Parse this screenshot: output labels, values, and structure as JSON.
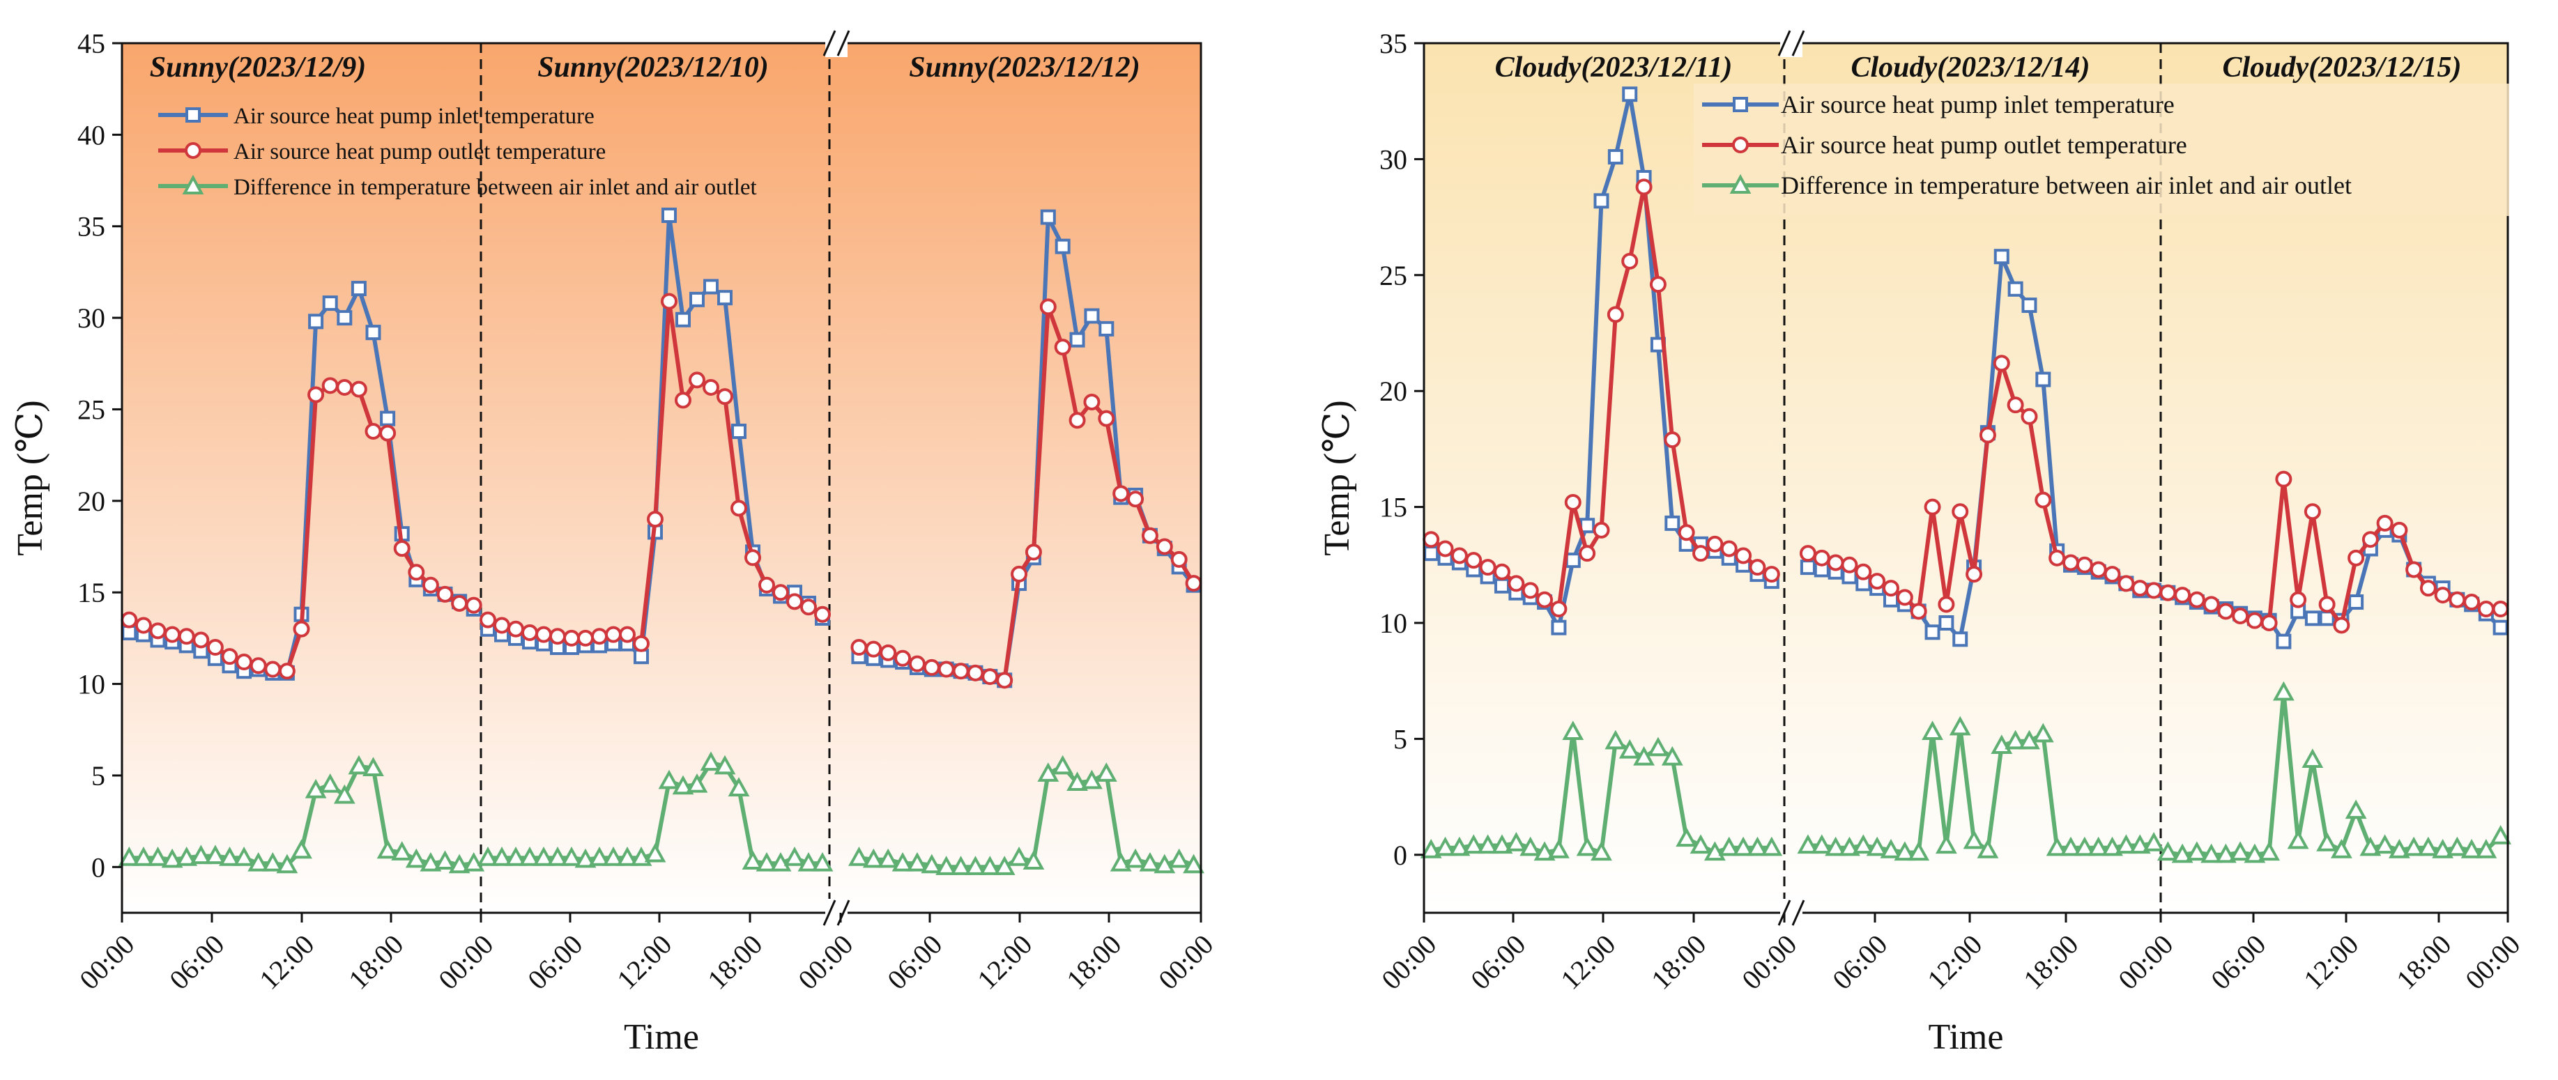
{
  "chart_data": [
    {
      "type": "line",
      "ylabel": "Temp (℃)",
      "xlabel": "Time",
      "ylim": [
        -2.5,
        45
      ],
      "yticks": [
        0,
        5,
        10,
        15,
        20,
        25,
        30,
        35,
        40,
        45
      ],
      "xticks": [
        "00:00",
        "06:00",
        "12:00",
        "18:00",
        "00:00",
        "06:00",
        "12:00",
        "18:00",
        "00:00",
        "06:00",
        "12:00",
        "18:00",
        "00:00"
      ],
      "panel_titles": [
        "Sunny(2023/12/9)",
        "Sunny(2023/12/10)",
        "Sunny(2023/12/12)"
      ],
      "legend": [
        "Air source heat pump inlet temperature",
        "Air source heat pump outlet temperature",
        "Difference in temperature between air inlet and air outlet"
      ],
      "legend_position": "top-left",
      "background": "gradient-orange",
      "colors": {
        "inlet": "#4a76b8",
        "outlet": "#d0373c",
        "diff": "#5fae72",
        "bg_top": "#f9a66c",
        "bg_bottom": "#ffffff"
      },
      "series": [
        {
          "name": "Air source heat pump inlet temperature",
          "values": [
            [
              12.8,
              12.7,
              12.4,
              12.3,
              12.1,
              11.8,
              11.4,
              11.0,
              10.7,
              10.8,
              10.6,
              10.6,
              13.8,
              29.8,
              30.8,
              30.0,
              31.6,
              29.2,
              24.5,
              18.2,
              15.7,
              15.2,
              14.9,
              14.5,
              14.1
            ],
            [
              13.0,
              12.7,
              12.5,
              12.3,
              12.2,
              12.0,
              12.0,
              12.1,
              12.1,
              12.2,
              12.2,
              11.5,
              18.3,
              35.6,
              29.9,
              31.0,
              31.7,
              31.1,
              23.8,
              17.2,
              15.2,
              14.8,
              15.0,
              14.4,
              13.6
            ],
            [
              11.5,
              11.4,
              11.3,
              11.2,
              10.9,
              10.8,
              10.8,
              10.7,
              10.6,
              10.4,
              10.2,
              15.5,
              16.9,
              35.5,
              33.9,
              28.8,
              30.1,
              29.4,
              20.2,
              20.3,
              18.1,
              17.4,
              16.4,
              15.4
            ]
          ]
        },
        {
          "name": "Air source heat pump outlet temperature",
          "values": [
            [
              13.5,
              13.2,
              12.9,
              12.7,
              12.6,
              12.4,
              12.0,
              11.5,
              11.2,
              11.0,
              10.8,
              10.7,
              13.0,
              25.8,
              26.3,
              26.2,
              26.1,
              23.8,
              23.7,
              17.4,
              16.1,
              15.4,
              14.9,
              14.4,
              14.3
            ],
            [
              13.5,
              13.2,
              13.0,
              12.8,
              12.7,
              12.6,
              12.5,
              12.5,
              12.6,
              12.7,
              12.7,
              12.2,
              19.0,
              30.9,
              25.5,
              26.6,
              26.2,
              25.7,
              19.6,
              16.9,
              15.4,
              15.0,
              14.5,
              14.2,
              13.8
            ],
            [
              12.0,
              11.9,
              11.7,
              11.4,
              11.1,
              10.9,
              10.8,
              10.7,
              10.6,
              10.4,
              10.2,
              16.0,
              17.2,
              30.6,
              28.4,
              24.4,
              25.4,
              24.5,
              20.4,
              20.1,
              18.1,
              17.5,
              16.8,
              15.5
            ]
          ]
        },
        {
          "name": "Difference in temperature between air inlet and air outlet",
          "values": [
            [
              0.5,
              0.5,
              0.5,
              0.4,
              0.5,
              0.6,
              0.6,
              0.5,
              0.5,
              0.2,
              0.2,
              0.1,
              0.9,
              4.2,
              4.5,
              3.9,
              5.5,
              5.4,
              0.9,
              0.8,
              0.4,
              0.2,
              0.3,
              0.1,
              0.2
            ],
            [
              0.5,
              0.5,
              0.5,
              0.5,
              0.5,
              0.5,
              0.5,
              0.4,
              0.5,
              0.5,
              0.5,
              0.5,
              0.7,
              4.7,
              4.4,
              4.5,
              5.7,
              5.5,
              4.3,
              0.3,
              0.2,
              0.2,
              0.5,
              0.2,
              0.2
            ],
            [
              0.5,
              0.4,
              0.4,
              0.2,
              0.2,
              0.1,
              0.0,
              0.0,
              0.0,
              0.0,
              0.0,
              0.5,
              0.3,
              5.1,
              5.5,
              4.6,
              4.7,
              5.1,
              0.2,
              0.4,
              0.2,
              0.1,
              0.4,
              0.1
            ]
          ]
        }
      ]
    },
    {
      "type": "line",
      "ylabel": "Temp (℃)",
      "xlabel": "Time",
      "ylim": [
        -2.5,
        35
      ],
      "yticks": [
        0,
        5,
        10,
        15,
        20,
        25,
        30,
        35
      ],
      "xticks": [
        "00:00",
        "06:00",
        "12:00",
        "18:00",
        "00:00",
        "06:00",
        "12:00",
        "18:00",
        "00:00",
        "06:00",
        "12:00",
        "18:00",
        "00:00"
      ],
      "panel_titles": [
        "Cloudy(2023/12/11)",
        "Cloudy(2023/12/14)",
        "Cloudy(2023/12/15)"
      ],
      "legend": [
        "Air source heat pump inlet temperature",
        "Air source heat pump outlet temperature",
        "Difference in temperature between air inlet and air outlet"
      ],
      "legend_position": "top-right",
      "background": "gradient-yellow",
      "colors": {
        "inlet": "#4a76b8",
        "outlet": "#d0373c",
        "diff": "#5fae72",
        "bg_top": "#fbe5b5",
        "bg_bottom": "#ffffff"
      },
      "series": [
        {
          "name": "Air source heat pump inlet temperature",
          "values": [
            [
              13.0,
              12.8,
              12.6,
              12.3,
              12.0,
              11.6,
              11.3,
              11.1,
              10.9,
              9.8,
              12.7,
              14.2,
              28.2,
              30.1,
              32.8,
              29.2,
              22.0,
              14.3,
              13.4,
              13.4,
              13.1,
              12.8,
              12.5,
              12.1,
              11.8
            ],
            [
              12.4,
              12.3,
              12.2,
              12.0,
              11.7,
              11.5,
              11.0,
              10.8,
              10.5,
              9.6,
              10.0,
              9.3,
              12.4,
              18.2,
              25.8,
              24.4,
              23.7,
              20.5,
              13.1,
              12.5,
              12.4,
              12.2,
              12.0,
              11.7,
              11.4,
              11.4
            ],
            [
              11.3,
              11.1,
              10.9,
              10.7,
              10.6,
              10.4,
              10.2,
              10.1,
              9.2,
              10.5,
              10.2,
              10.2,
              10.1,
              10.9,
              13.2,
              14.0,
              13.8,
              12.3,
              11.7,
              11.5,
              11.0,
              10.8,
              10.4,
              9.8
            ]
          ]
        },
        {
          "name": "Air source heat pump outlet temperature",
          "values": [
            [
              13.6,
              13.2,
              12.9,
              12.7,
              12.4,
              12.2,
              11.7,
              11.4,
              11.0,
              10.6,
              15.2,
              13.0,
              14.0,
              23.3,
              25.6,
              28.8,
              24.6,
              17.9,
              13.9,
              13.0,
              13.4,
              13.2,
              12.9,
              12.4,
              12.1
            ],
            [
              13.0,
              12.8,
              12.6,
              12.5,
              12.2,
              11.8,
              11.5,
              11.1,
              10.5,
              15.0,
              10.8,
              14.8,
              12.1,
              18.1,
              21.2,
              19.4,
              18.9,
              15.3,
              12.8,
              12.6,
              12.5,
              12.3,
              12.1,
              11.7,
              11.5,
              11.4
            ],
            [
              11.3,
              11.2,
              11.0,
              10.8,
              10.5,
              10.3,
              10.1,
              10.0,
              16.2,
              11.0,
              14.8,
              10.8,
              9.9,
              12.8,
              13.6,
              14.3,
              14.0,
              12.3,
              11.5,
              11.2,
              11.0,
              10.9,
              10.6,
              10.6
            ]
          ]
        },
        {
          "name": "Difference in temperature between air inlet and air outlet",
          "values": [
            [
              0.2,
              0.3,
              0.3,
              0.4,
              0.4,
              0.4,
              0.5,
              0.3,
              0.1,
              0.2,
              5.3,
              0.3,
              0.1,
              4.9,
              4.5,
              4.2,
              4.6,
              4.2,
              0.7,
              0.4,
              0.1,
              0.3,
              0.3,
              0.3,
              0.3
            ],
            [
              0.4,
              0.4,
              0.3,
              0.3,
              0.4,
              0.3,
              0.2,
              0.1,
              0.1,
              5.3,
              0.4,
              5.5,
              0.6,
              0.2,
              4.7,
              4.9,
              4.9,
              5.2,
              0.3,
              0.3,
              0.3,
              0.3,
              0.3,
              0.4,
              0.4,
              0.5
            ],
            [
              0.1,
              0.0,
              0.1,
              0.0,
              0.0,
              0.1,
              0.0,
              0.1,
              7.0,
              0.6,
              4.1,
              0.5,
              0.2,
              1.9,
              0.3,
              0.4,
              0.2,
              0.3,
              0.3,
              0.2,
              0.3,
              0.2,
              0.2,
              0.8
            ]
          ]
        }
      ]
    }
  ]
}
